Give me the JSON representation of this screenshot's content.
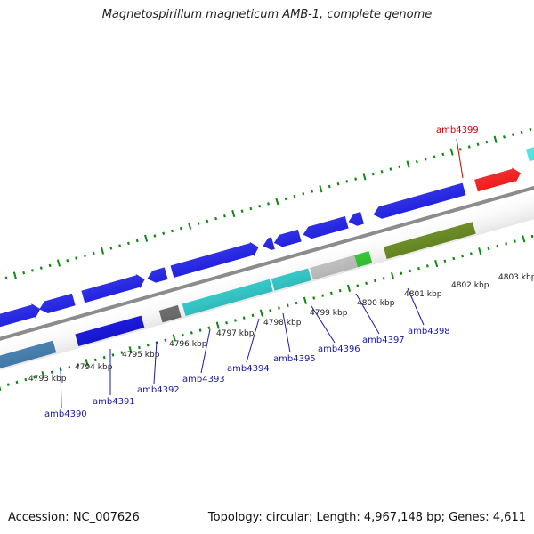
{
  "map": {
    "title": "Magnetospirillum magneticum AMB-1, complete genome",
    "accession": "Accession: NC_007626",
    "summary": "Topology: circular; Length: 4,967,148 bp; Genes: 4,611"
  },
  "kbp_ticks": [
    "4793 kbp",
    "4794 kbp",
    "4795 kbp",
    "4796 kbp",
    "4797 kbp",
    "4798 kbp",
    "4799 kbp",
    "4800 kbp",
    "4801 kbp",
    "4802 kbp",
    "4803 kbp"
  ],
  "gene_labels": [
    "amb4390",
    "amb4391",
    "amb4392",
    "amb4393",
    "amb4394",
    "amb4395",
    "amb4396",
    "amb4397",
    "amb4398",
    "amb4399"
  ],
  "colors": {
    "backbone": "#8c8c8c",
    "cds": "#1616e0",
    "tick": "#118811",
    "label_blue": "#1a1aa8",
    "label_red": "#cc0000",
    "cyan": "#33cccc",
    "grey": "#6e6e6e",
    "light_grey": "#c4c4c4",
    "green": "#33cc33",
    "olive": "#6b8e23",
    "red": "#ee1111",
    "steel": "#4682b4"
  }
}
